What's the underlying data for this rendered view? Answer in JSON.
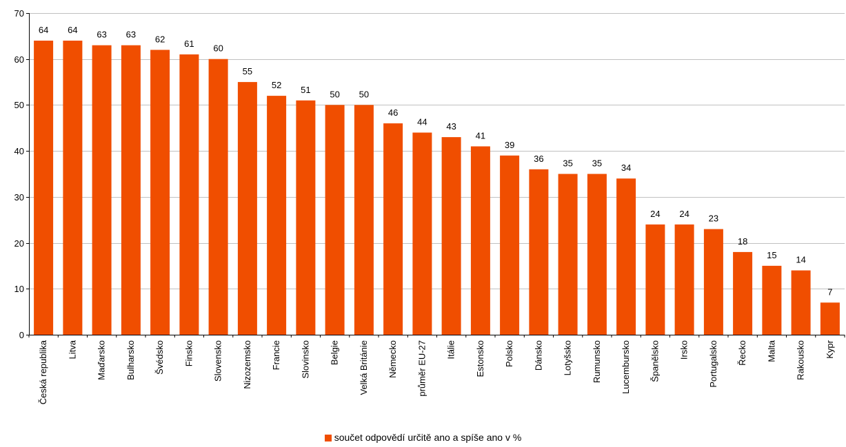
{
  "chart_data": {
    "type": "bar",
    "categories": [
      "Česká republika",
      "Litva",
      "Maďarsko",
      "Bulharsko",
      "Švédsko",
      "Finsko",
      "Slovensko",
      "Nizozemsko",
      "Francie",
      "Slovinsko",
      "Belgie",
      "Velká Británie",
      "Německo",
      "průměr EU-27",
      "Itálie",
      "Estonsko",
      "Polsko",
      "Dánsko",
      "Lotyšsko",
      "Rumunsko",
      "Lucembursko",
      "Španělsko",
      "Irsko",
      "Portugalsko",
      "Řecko",
      "Malta",
      "Rakousko",
      "Kypr"
    ],
    "series": [
      {
        "name": "součet odpovědí určitě ano a spíše ano v %",
        "values": [
          64,
          64,
          63,
          63,
          62,
          61,
          60,
          55,
          52,
          51,
          50,
          50,
          46,
          44,
          43,
          41,
          39,
          36,
          35,
          35,
          34,
          24,
          24,
          23,
          18,
          15,
          14,
          7
        ],
        "color": "#f04e00"
      }
    ],
    "ylim": [
      0,
      70
    ],
    "yticks": [
      0,
      10,
      20,
      30,
      40,
      50,
      60,
      70
    ],
    "grid": true,
    "legend": "bottom",
    "data_labels": true
  }
}
